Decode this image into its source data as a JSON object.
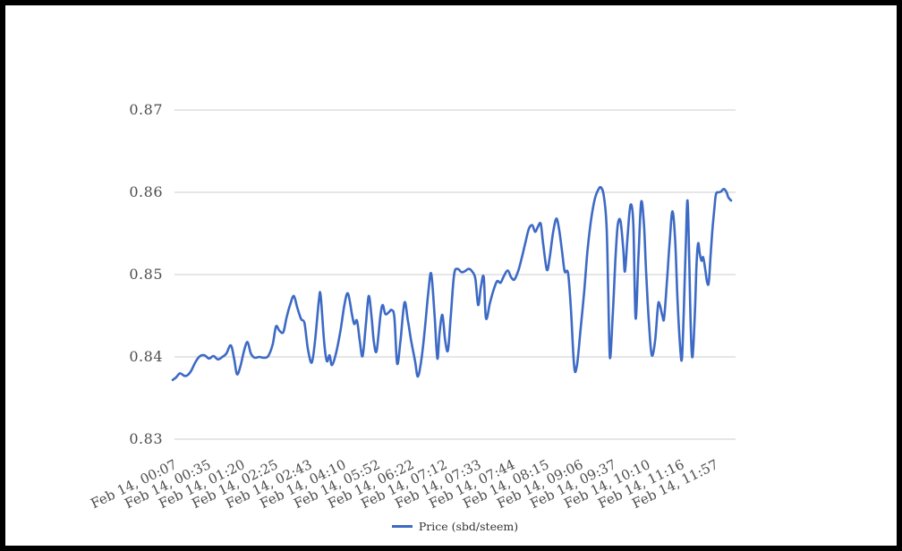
{
  "page": {
    "background": "#ffffff",
    "frame_color": "#000000"
  },
  "legend": {
    "label": "Price (sbd/steem)"
  },
  "chart_data": {
    "type": "line",
    "title": "",
    "legend_position": "bottom",
    "grid": true,
    "grid_color": "#cccccc",
    "label_color": "#4d4d4d",
    "series": [
      {
        "name": "Price (sbd/steem)",
        "color": "#3d6ac5"
      }
    ],
    "x_axis": {
      "tick_labels": [
        "Feb 14, 00:07",
        "Feb 14, 00:35",
        "Feb 14, 01:20",
        "Feb 14, 02:25",
        "Feb 14, 02:43",
        "Feb 14, 04:10",
        "Feb 14, 05:52",
        "Feb 14, 06:22",
        "Feb 14, 07:12",
        "Feb 14, 07:33",
        "Feb 14, 07:44",
        "Feb 14, 08:15",
        "Feb 14, 09:06",
        "Feb 14, 09:37",
        "Feb 14, 10:10",
        "Feb 14, 11:16",
        "Feb 14, 11:57"
      ]
    },
    "y_axis": {
      "min": 0.83,
      "max": 0.87,
      "ticks": [
        {
          "value": 0.87,
          "label": "0.87"
        },
        {
          "value": 0.86,
          "label": "0.86"
        },
        {
          "value": 0.85,
          "label": "0.85"
        },
        {
          "value": 0.84,
          "label": "0.84"
        },
        {
          "value": 0.83,
          "label": "0.83"
        }
      ]
    },
    "points": [
      [
        0.0,
        0.8372
      ],
      [
        0.006,
        0.8375
      ],
      [
        0.013,
        0.838
      ],
      [
        0.021,
        0.8377
      ],
      [
        0.027,
        0.8378
      ],
      [
        0.033,
        0.8383
      ],
      [
        0.041,
        0.8394
      ],
      [
        0.049,
        0.8401
      ],
      [
        0.057,
        0.8402
      ],
      [
        0.065,
        0.8398
      ],
      [
        0.073,
        0.8401
      ],
      [
        0.081,
        0.8397
      ],
      [
        0.089,
        0.84
      ],
      [
        0.096,
        0.8404
      ],
      [
        0.104,
        0.8414
      ],
      [
        0.11,
        0.8398
      ],
      [
        0.115,
        0.8379
      ],
      [
        0.121,
        0.8388
      ],
      [
        0.128,
        0.8408
      ],
      [
        0.134,
        0.8418
      ],
      [
        0.14,
        0.8404
      ],
      [
        0.147,
        0.8399
      ],
      [
        0.155,
        0.84
      ],
      [
        0.163,
        0.8399
      ],
      [
        0.171,
        0.8401
      ],
      [
        0.179,
        0.8415
      ],
      [
        0.185,
        0.8437
      ],
      [
        0.191,
        0.8432
      ],
      [
        0.198,
        0.843
      ],
      [
        0.204,
        0.8448
      ],
      [
        0.211,
        0.8465
      ],
      [
        0.217,
        0.8474
      ],
      [
        0.223,
        0.846
      ],
      [
        0.23,
        0.8446
      ],
      [
        0.236,
        0.8441
      ],
      [
        0.242,
        0.841
      ],
      [
        0.249,
        0.8393
      ],
      [
        0.255,
        0.842
      ],
      [
        0.262,
        0.847
      ],
      [
        0.265,
        0.8474
      ],
      [
        0.271,
        0.842
      ],
      [
        0.276,
        0.8395
      ],
      [
        0.281,
        0.8402
      ],
      [
        0.285,
        0.839
      ],
      [
        0.292,
        0.8403
      ],
      [
        0.3,
        0.843
      ],
      [
        0.308,
        0.8465
      ],
      [
        0.314,
        0.8477
      ],
      [
        0.321,
        0.8452
      ],
      [
        0.325,
        0.844
      ],
      [
        0.33,
        0.8444
      ],
      [
        0.335,
        0.842
      ],
      [
        0.34,
        0.8401
      ],
      [
        0.346,
        0.844
      ],
      [
        0.351,
        0.8474
      ],
      [
        0.356,
        0.845
      ],
      [
        0.36,
        0.842
      ],
      [
        0.365,
        0.8407
      ],
      [
        0.372,
        0.845
      ],
      [
        0.376,
        0.8463
      ],
      [
        0.381,
        0.8452
      ],
      [
        0.388,
        0.8455
      ],
      [
        0.392,
        0.8457
      ],
      [
        0.397,
        0.8448
      ],
      [
        0.402,
        0.8392
      ],
      [
        0.408,
        0.842
      ],
      [
        0.415,
        0.8466
      ],
      [
        0.421,
        0.8445
      ],
      [
        0.427,
        0.842
      ],
      [
        0.434,
        0.8395
      ],
      [
        0.439,
        0.8376
      ],
      [
        0.445,
        0.8395
      ],
      [
        0.451,
        0.843
      ],
      [
        0.458,
        0.848
      ],
      [
        0.463,
        0.8501
      ],
      [
        0.469,
        0.845
      ],
      [
        0.474,
        0.8398
      ],
      [
        0.478,
        0.843
      ],
      [
        0.483,
        0.8451
      ],
      [
        0.488,
        0.842
      ],
      [
        0.493,
        0.8408
      ],
      [
        0.498,
        0.845
      ],
      [
        0.504,
        0.85
      ],
      [
        0.51,
        0.8507
      ],
      [
        0.517,
        0.8503
      ],
      [
        0.523,
        0.8504
      ],
      [
        0.53,
        0.8507
      ],
      [
        0.536,
        0.8504
      ],
      [
        0.542,
        0.8495
      ],
      [
        0.547,
        0.8463
      ],
      [
        0.552,
        0.8485
      ],
      [
        0.557,
        0.8497
      ],
      [
        0.561,
        0.8447
      ],
      [
        0.568,
        0.8465
      ],
      [
        0.574,
        0.848
      ],
      [
        0.581,
        0.8492
      ],
      [
        0.587,
        0.849
      ],
      [
        0.593,
        0.8498
      ],
      [
        0.6,
        0.8505
      ],
      [
        0.606,
        0.8497
      ],
      [
        0.612,
        0.8494
      ],
      [
        0.619,
        0.8505
      ],
      [
        0.625,
        0.852
      ],
      [
        0.632,
        0.854
      ],
      [
        0.638,
        0.8556
      ],
      [
        0.644,
        0.856
      ],
      [
        0.649,
        0.8552
      ],
      [
        0.654,
        0.8558
      ],
      [
        0.659,
        0.8562
      ],
      [
        0.663,
        0.854
      ],
      [
        0.67,
        0.8506
      ],
      [
        0.675,
        0.852
      ],
      [
        0.681,
        0.855
      ],
      [
        0.687,
        0.8568
      ],
      [
        0.692,
        0.8555
      ],
      [
        0.697,
        0.853
      ],
      [
        0.702,
        0.8504
      ],
      [
        0.708,
        0.8502
      ],
      [
        0.713,
        0.846
      ],
      [
        0.719,
        0.8388
      ],
      [
        0.724,
        0.839
      ],
      [
        0.73,
        0.843
      ],
      [
        0.737,
        0.848
      ],
      [
        0.743,
        0.853
      ],
      [
        0.75,
        0.857
      ],
      [
        0.756,
        0.8592
      ],
      [
        0.762,
        0.8603
      ],
      [
        0.767,
        0.8606
      ],
      [
        0.772,
        0.8596
      ],
      [
        0.777,
        0.856
      ],
      [
        0.78,
        0.848
      ],
      [
        0.783,
        0.8399
      ],
      [
        0.788,
        0.845
      ],
      [
        0.793,
        0.852
      ],
      [
        0.797,
        0.856
      ],
      [
        0.802,
        0.8565
      ],
      [
        0.807,
        0.853
      ],
      [
        0.81,
        0.8504
      ],
      [
        0.815,
        0.855
      ],
      [
        0.82,
        0.8585
      ],
      [
        0.825,
        0.856
      ],
      [
        0.829,
        0.8447
      ],
      [
        0.834,
        0.852
      ],
      [
        0.839,
        0.8588
      ],
      [
        0.844,
        0.856
      ],
      [
        0.848,
        0.85
      ],
      [
        0.853,
        0.844
      ],
      [
        0.858,
        0.8402
      ],
      [
        0.864,
        0.842
      ],
      [
        0.869,
        0.8462
      ],
      [
        0.872,
        0.8464
      ],
      [
        0.877,
        0.845
      ],
      [
        0.88,
        0.8447
      ],
      [
        0.885,
        0.849
      ],
      [
        0.89,
        0.854
      ],
      [
        0.895,
        0.8577
      ],
      [
        0.9,
        0.854
      ],
      [
        0.904,
        0.847
      ],
      [
        0.909,
        0.841
      ],
      [
        0.912,
        0.8398
      ],
      [
        0.915,
        0.845
      ],
      [
        0.919,
        0.854
      ],
      [
        0.922,
        0.859
      ],
      [
        0.925,
        0.852
      ],
      [
        0.928,
        0.843
      ],
      [
        0.931,
        0.84
      ],
      [
        0.935,
        0.845
      ],
      [
        0.938,
        0.851
      ],
      [
        0.941,
        0.8538
      ],
      [
        0.944,
        0.8525
      ],
      [
        0.947,
        0.8517
      ],
      [
        0.95,
        0.8521
      ],
      [
        0.954,
        0.8505
      ],
      [
        0.957,
        0.8491
      ],
      [
        0.96,
        0.849
      ],
      [
        0.963,
        0.852
      ],
      [
        0.966,
        0.855
      ],
      [
        0.97,
        0.858
      ],
      [
        0.973,
        0.8598
      ],
      [
        0.978,
        0.86
      ],
      [
        0.982,
        0.8601
      ],
      [
        0.987,
        0.8604
      ],
      [
        0.992,
        0.86
      ],
      [
        0.995,
        0.8594
      ],
      [
        1.0,
        0.859
      ]
    ]
  }
}
